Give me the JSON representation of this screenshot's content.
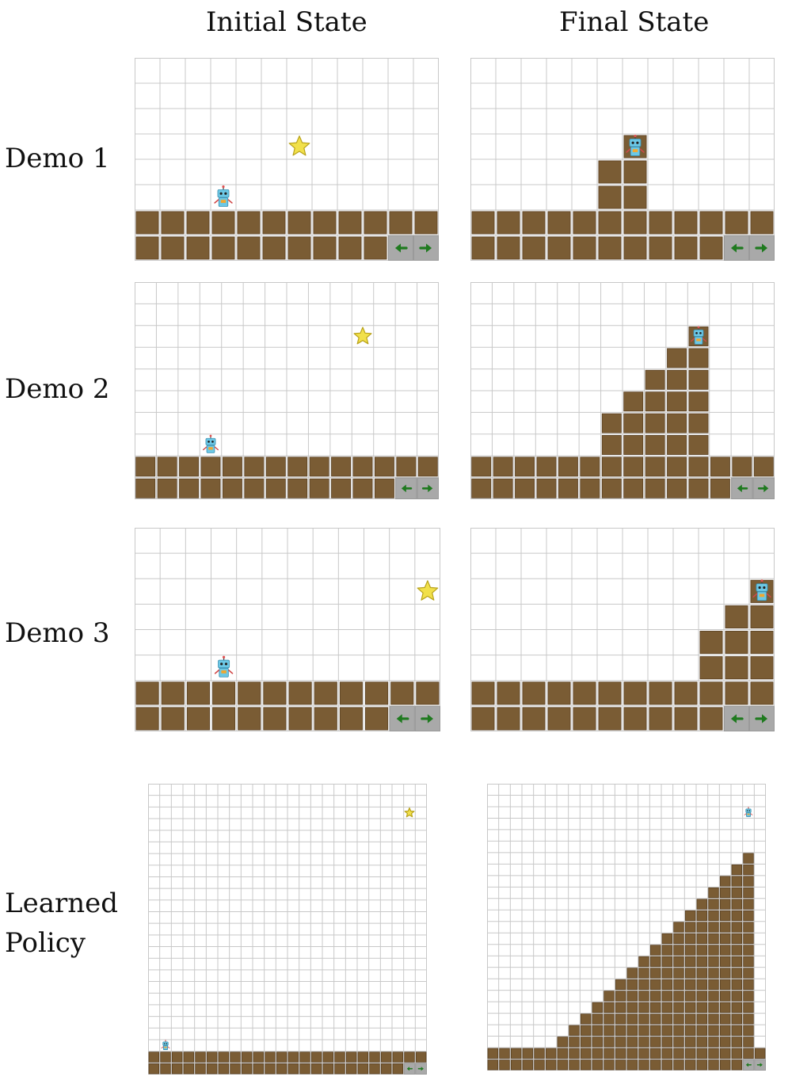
{
  "columns": [
    "Initial State",
    "Final State"
  ],
  "rows": [
    {
      "label": "Demo 1",
      "cols": 12,
      "rows": 8,
      "initial": {
        "floor": [
          1,
          1,
          1,
          1,
          1,
          1,
          1,
          1,
          1,
          1,
          1,
          1
        ],
        "robot": [
          3,
          5
        ],
        "star": [
          6,
          3
        ]
      },
      "final": {
        "floor": [
          1,
          1,
          1,
          1,
          1,
          3,
          4,
          1,
          1,
          1,
          1,
          1
        ],
        "robot": [
          6,
          3
        ]
      }
    },
    {
      "label": "Demo 2",
      "cols": 14,
      "rows": 10,
      "initial": {
        "floor": [
          1,
          1,
          1,
          1,
          1,
          1,
          1,
          1,
          1,
          1,
          1,
          1,
          1,
          1
        ],
        "robot": [
          3,
          7
        ],
        "star": [
          10,
          2
        ]
      },
      "final": {
        "floor": [
          1,
          1,
          1,
          1,
          1,
          1,
          3,
          4,
          5,
          6,
          7,
          1,
          1,
          1
        ],
        "robot": [
          10,
          2
        ]
      }
    },
    {
      "label": "Demo 3",
      "cols": 12,
      "rows": 8,
      "initial": {
        "floor": [
          1,
          1,
          1,
          1,
          1,
          1,
          1,
          1,
          1,
          1,
          1,
          1
        ],
        "robot": [
          3,
          5
        ],
        "star": [
          11,
          2
        ]
      },
      "final": {
        "floor": [
          1,
          1,
          1,
          1,
          1,
          1,
          1,
          1,
          1,
          3,
          4,
          5
        ],
        "robot": [
          11,
          2
        ]
      }
    },
    {
      "label": [
        "Learned",
        "Policy"
      ],
      "cols": 24,
      "rows": 25,
      "initial": {
        "floor": [
          1,
          1,
          1,
          1,
          1,
          1,
          1,
          1,
          1,
          1,
          1,
          1,
          1,
          1,
          1,
          1,
          1,
          1,
          1,
          1,
          1,
          1,
          1,
          1
        ],
        "robot": [
          1,
          22
        ],
        "star": [
          22,
          2
        ]
      },
      "final": {
        "floor": [
          1,
          1,
          1,
          1,
          1,
          1,
          2,
          3,
          4,
          5,
          6,
          7,
          8,
          9,
          10,
          11,
          12,
          13,
          14,
          15,
          16,
          17,
          18,
          1
        ],
        "robot": [
          22,
          2
        ]
      }
    }
  ],
  "colors": {
    "grid_line": "#c8c8c8",
    "dirt": "#7a5c34",
    "dirt_edge": "#5a4122",
    "control_bg": "#a9a9a9",
    "arrow": "#1f7a1f",
    "star_fill": "#f1e04a",
    "star_edge": "#b8a21a",
    "robot_body": "#6cc8e6",
    "robot_panel": "#f0a830"
  }
}
